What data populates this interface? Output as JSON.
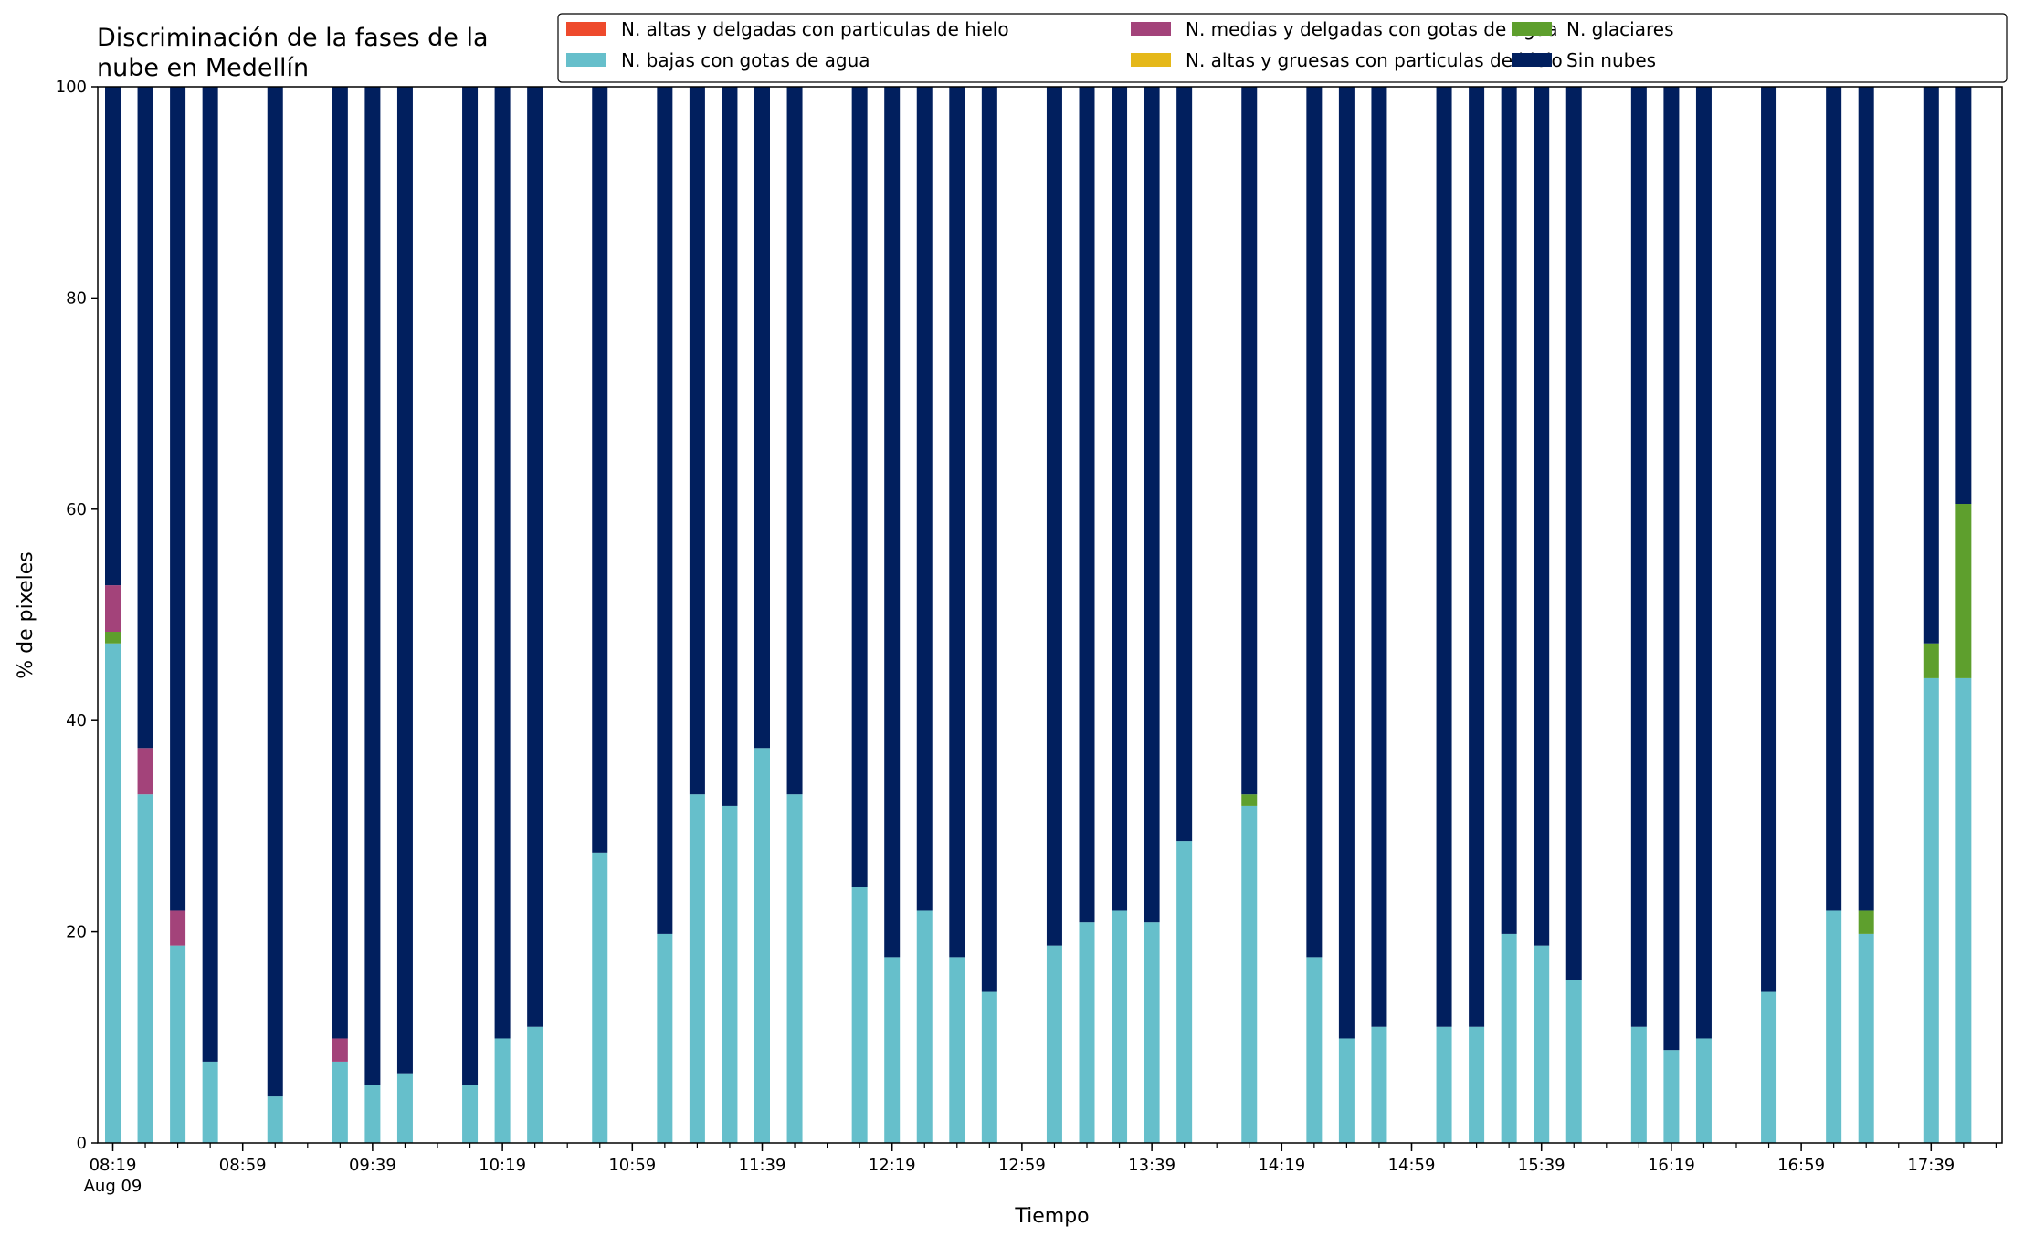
{
  "chart_data": {
    "type": "bar",
    "stacked": true,
    "title_lines": [
      "Discriminación de la fases de la",
      "nube en Medellín"
    ],
    "xlabel": "Tiempo",
    "ylabel": "% de pixeles",
    "ylim": [
      0,
      100
    ],
    "yticks": [
      0,
      20,
      40,
      60,
      80,
      100
    ],
    "grid": false,
    "legend_position": "top-right",
    "x_start": "08:19",
    "x_step_minutes": 10,
    "x_count": 59,
    "xticks": [
      {
        "slot": 0,
        "label": "08:19",
        "sublabel": "Aug 09"
      },
      {
        "slot": 4,
        "label": "08:59"
      },
      {
        "slot": 8,
        "label": "09:39"
      },
      {
        "slot": 12,
        "label": "10:19"
      },
      {
        "slot": 16,
        "label": "10:59"
      },
      {
        "slot": 20,
        "label": "11:39"
      },
      {
        "slot": 24,
        "label": "12:19"
      },
      {
        "slot": 28,
        "label": "12:59"
      },
      {
        "slot": 32,
        "label": "13:39"
      },
      {
        "slot": 36,
        "label": "14:19"
      },
      {
        "slot": 40,
        "label": "14:59"
      },
      {
        "slot": 44,
        "label": "15:39"
      },
      {
        "slot": 48,
        "label": "16:19"
      },
      {
        "slot": 52,
        "label": "16:59"
      },
      {
        "slot": 56,
        "label": "17:39"
      }
    ],
    "bars": [
      {
        "slot": 0,
        "values": [
          0,
          0,
          47.3,
          1.1,
          4.4,
          47.2
        ]
      },
      {
        "slot": 1,
        "values": [
          0,
          0,
          33.0,
          0,
          4.4,
          62.6
        ]
      },
      {
        "slot": 2,
        "values": [
          0,
          0,
          18.7,
          0,
          3.3,
          78.0
        ]
      },
      {
        "slot": 3,
        "values": [
          0,
          0,
          7.7,
          0,
          0,
          92.3
        ]
      },
      {
        "slot": 5,
        "values": [
          0,
          0,
          4.4,
          0,
          0,
          95.6
        ]
      },
      {
        "slot": 7,
        "values": [
          0,
          0,
          7.7,
          0,
          2.2,
          90.1
        ]
      },
      {
        "slot": 8,
        "values": [
          0,
          0,
          5.5,
          0,
          0,
          94.5
        ]
      },
      {
        "slot": 9,
        "values": [
          0,
          0,
          6.6,
          0,
          0,
          93.4
        ]
      },
      {
        "slot": 11,
        "values": [
          0,
          0,
          5.5,
          0,
          0,
          94.5
        ]
      },
      {
        "slot": 12,
        "values": [
          0,
          0,
          9.9,
          0,
          0,
          90.1
        ]
      },
      {
        "slot": 13,
        "values": [
          0,
          0,
          11.0,
          0,
          0,
          89.0
        ]
      },
      {
        "slot": 15,
        "values": [
          0,
          0,
          27.5,
          0,
          0,
          72.5
        ]
      },
      {
        "slot": 17,
        "values": [
          0,
          0,
          19.8,
          0,
          0,
          80.2
        ]
      },
      {
        "slot": 18,
        "values": [
          0,
          0,
          33.0,
          0,
          0,
          67.0
        ]
      },
      {
        "slot": 19,
        "values": [
          0,
          0,
          31.9,
          0,
          0,
          68.1
        ]
      },
      {
        "slot": 20,
        "values": [
          0,
          0,
          37.4,
          0,
          0,
          62.6
        ]
      },
      {
        "slot": 21,
        "values": [
          0,
          0,
          33.0,
          0,
          0,
          67.0
        ]
      },
      {
        "slot": 23,
        "values": [
          0,
          0,
          24.2,
          0,
          0,
          75.8
        ]
      },
      {
        "slot": 24,
        "values": [
          0,
          0,
          17.6,
          0,
          0,
          82.4
        ]
      },
      {
        "slot": 25,
        "values": [
          0,
          0,
          22.0,
          0,
          0,
          78.0
        ]
      },
      {
        "slot": 26,
        "values": [
          0,
          0,
          17.6,
          0,
          0,
          82.4
        ]
      },
      {
        "slot": 27,
        "values": [
          0,
          0,
          14.3,
          0,
          0,
          85.7
        ]
      },
      {
        "slot": 29,
        "values": [
          0,
          0,
          18.7,
          0,
          0,
          81.3
        ]
      },
      {
        "slot": 30,
        "values": [
          0,
          0,
          20.9,
          0,
          0,
          79.1
        ]
      },
      {
        "slot": 31,
        "values": [
          0,
          0,
          22.0,
          0,
          0,
          78.0
        ]
      },
      {
        "slot": 32,
        "values": [
          0,
          0,
          20.9,
          0,
          0,
          79.1
        ]
      },
      {
        "slot": 33,
        "values": [
          0,
          0,
          28.6,
          0,
          0,
          71.4
        ]
      },
      {
        "slot": 35,
        "values": [
          0,
          0,
          31.9,
          1.1,
          0,
          67.0
        ]
      },
      {
        "slot": 37,
        "values": [
          0,
          0,
          17.6,
          0,
          0,
          82.4
        ]
      },
      {
        "slot": 38,
        "values": [
          0,
          0,
          9.9,
          0,
          0,
          90.1
        ]
      },
      {
        "slot": 39,
        "values": [
          0,
          0,
          11.0,
          0,
          0,
          89.0
        ]
      },
      {
        "slot": 41,
        "values": [
          0,
          0,
          11.0,
          0,
          0,
          89.0
        ]
      },
      {
        "slot": 42,
        "values": [
          0,
          0,
          11.0,
          0,
          0,
          89.0
        ]
      },
      {
        "slot": 43,
        "values": [
          0,
          0,
          19.8,
          0,
          0,
          80.2
        ]
      },
      {
        "slot": 44,
        "values": [
          0,
          0,
          18.7,
          0,
          0,
          81.3
        ]
      },
      {
        "slot": 45,
        "values": [
          0,
          0,
          15.4,
          0,
          0,
          84.6
        ]
      },
      {
        "slot": 47,
        "values": [
          0,
          0,
          11.0,
          0,
          0,
          89.0
        ]
      },
      {
        "slot": 48,
        "values": [
          0,
          0,
          8.8,
          0,
          0,
          91.2
        ]
      },
      {
        "slot": 49,
        "values": [
          0,
          0,
          9.9,
          0,
          0,
          90.1
        ]
      },
      {
        "slot": 51,
        "values": [
          0,
          0,
          14.3,
          0,
          0,
          85.7
        ]
      },
      {
        "slot": 53,
        "values": [
          0,
          0,
          22.0,
          0,
          0,
          78.0
        ]
      },
      {
        "slot": 54,
        "values": [
          0,
          0,
          19.8,
          2.2,
          0,
          78.0
        ]
      },
      {
        "slot": 56,
        "values": [
          0,
          0,
          44.0,
          3.3,
          0,
          52.7
        ]
      },
      {
        "slot": 57,
        "values": [
          0,
          0,
          44.0,
          16.5,
          0,
          39.5
        ]
      }
    ],
    "series": [
      {
        "name": "N. altas y delgadas con particulas de hielo",
        "color": "#ee4a2c"
      },
      {
        "name": "N. altas y gruesas con particulas de hielo",
        "color": "#e5b819"
      },
      {
        "name": "N. bajas con gotas de agua",
        "color": "#66bfcb"
      },
      {
        "name": "N. glaciares",
        "color": "#5e9f2d"
      },
      {
        "name": "N. medias y delgadas con gotas de agua",
        "color": "#a3437a"
      },
      {
        "name": "Sin nubes",
        "color": "#011f5e"
      }
    ],
    "legend_order": [
      0,
      2,
      4,
      1,
      3,
      5
    ]
  }
}
